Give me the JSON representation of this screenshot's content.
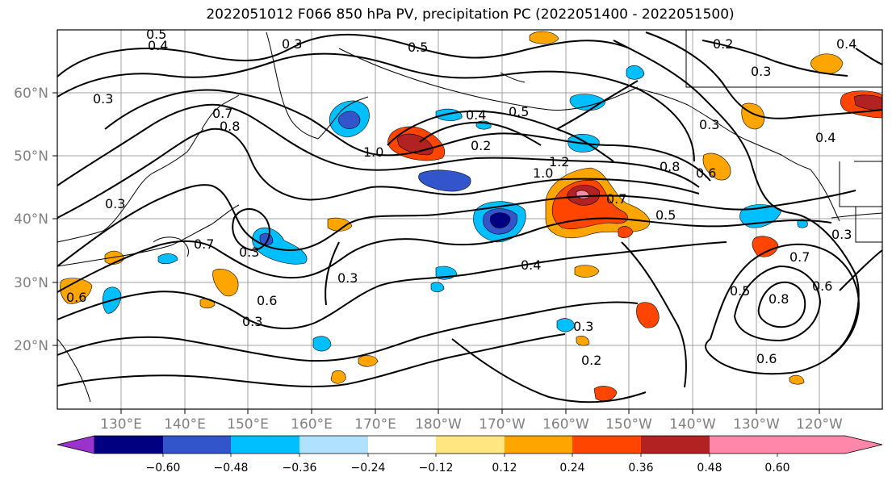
{
  "title": "2022051012 F066 850 hPa PV, precipitation PC (2022051400 - 2022051500)",
  "lat_labels": [
    "60°N",
    "50°N",
    "40°N",
    "30°N",
    "20°N"
  ],
  "lon_labels": [
    "130°E",
    "140°E",
    "150°E",
    "160°E",
    "170°E",
    "180°W",
    "170°W",
    "160°W",
    "150°W",
    "140°W",
    "130°W",
    "120°W"
  ],
  "colorbar": {
    "colors": [
      "#9933cc",
      "#000080",
      "#3355cc",
      "#00bfff",
      "#b0e2ff",
      "#ffffff",
      "#ffe680",
      "#ffa500",
      "#ff4500",
      "#b22222",
      "#ff88aa"
    ],
    "labels": [
      "−0.60",
      "−0.48",
      "−0.36",
      "−0.24",
      "−0.12",
      "0.12",
      "0.24",
      "0.36",
      "0.48",
      "0.60"
    ]
  },
  "contour_labels": [
    "0.5",
    "0.4",
    "0.3",
    "0.5",
    "0.2",
    "0.4",
    "0.3",
    "0.3",
    "0.7",
    "0.8",
    "1.0",
    "0.4",
    "0.5",
    "0.2",
    "1.2",
    "1.0",
    "0.7",
    "0.8",
    "0.6",
    "0.3",
    "0.4",
    "0.3",
    "0.7",
    "0.3",
    "0.6",
    "0.6",
    "0.3",
    "0.4",
    "0.3",
    "0.5",
    "0.7",
    "0.5",
    "0.8",
    "0.6",
    "0.6",
    "0.3",
    "0.2",
    "0.3"
  ]
}
